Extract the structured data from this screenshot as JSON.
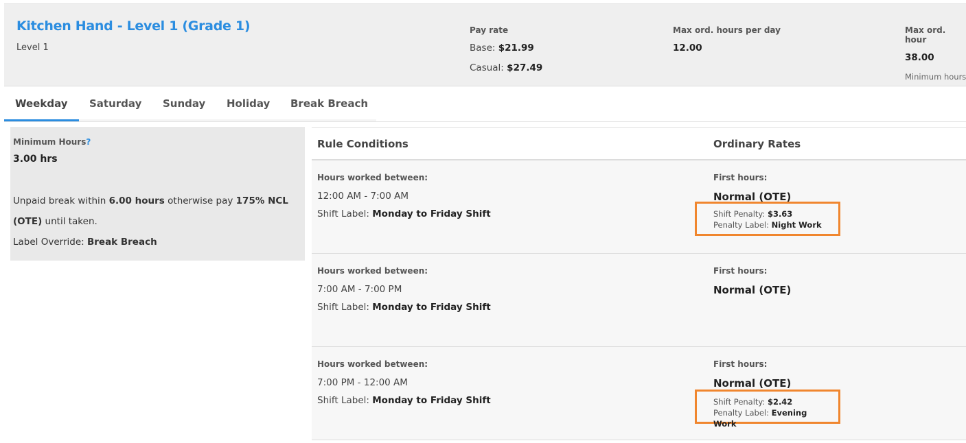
{
  "header": {
    "title": "Kitchen Hand - Level 1 (Grade 1)",
    "subtitle": "Level 1",
    "pay_rate": {
      "label": "Pay rate",
      "base_label": "Base:",
      "base": "$21.99",
      "casual_label": "Casual:",
      "casual": "$27.49"
    },
    "max_day": {
      "label": "Max ord. hours per day",
      "value": "12.00"
    },
    "max_week": {
      "label": "Max ord. hour",
      "value": "38.00",
      "note": "Minimum hours"
    }
  },
  "tabs": [
    {
      "label": "Weekday",
      "active": true
    },
    {
      "label": "Saturday"
    },
    {
      "label": "Sunday"
    },
    {
      "label": "Holiday"
    },
    {
      "label": "Break Breach"
    }
  ],
  "left": {
    "min_hours_label": "Minimum Hours",
    "help": "?",
    "min_hours": "3.00 hrs",
    "break_pre": "Unpaid break within ",
    "break_hours": "6.00 hours",
    "break_mid": " otherwise pay ",
    "break_rate": "175% NCL (OTE)",
    "break_post": " until taken.",
    "override_label": "Label Override: ",
    "override": "Break Breach"
  },
  "table": {
    "headers": [
      "Rule Conditions",
      "Ordinary Rates"
    ],
    "rows": [
      {
        "hw": "Hours worked between:",
        "range": "12:00 AM - 7:00 AM",
        "shift_label_key": "Shift Label: ",
        "shift_label": "Monday to Friday Shift",
        "first": "First hours:",
        "rate": "Normal (OTE)",
        "penalty_key": "Shift Penalty: ",
        "penalty": "$3.63",
        "plabel_key": "Penalty Label: ",
        "plabel": "Night Work"
      },
      {
        "hw": "Hours worked between:",
        "range": "7:00 AM - 7:00 PM",
        "shift_label_key": "Shift Label: ",
        "shift_label": "Monday to Friday Shift",
        "first": "First hours:",
        "rate": "Normal (OTE)"
      },
      {
        "hw": "Hours worked between:",
        "range": "7:00 PM - 12:00 AM",
        "shift_label_key": "Shift Label: ",
        "shift_label": "Monday to Friday Shift",
        "first": "First hours:",
        "rate": "Normal (OTE)",
        "penalty_key": "Shift Penalty: ",
        "penalty": "$2.42",
        "plabel_key": "Penalty Label: ",
        "plabel": "Evening Work"
      }
    ]
  },
  "colors": {
    "accent": "#2b8de0",
    "highlight": "#f0862e"
  }
}
